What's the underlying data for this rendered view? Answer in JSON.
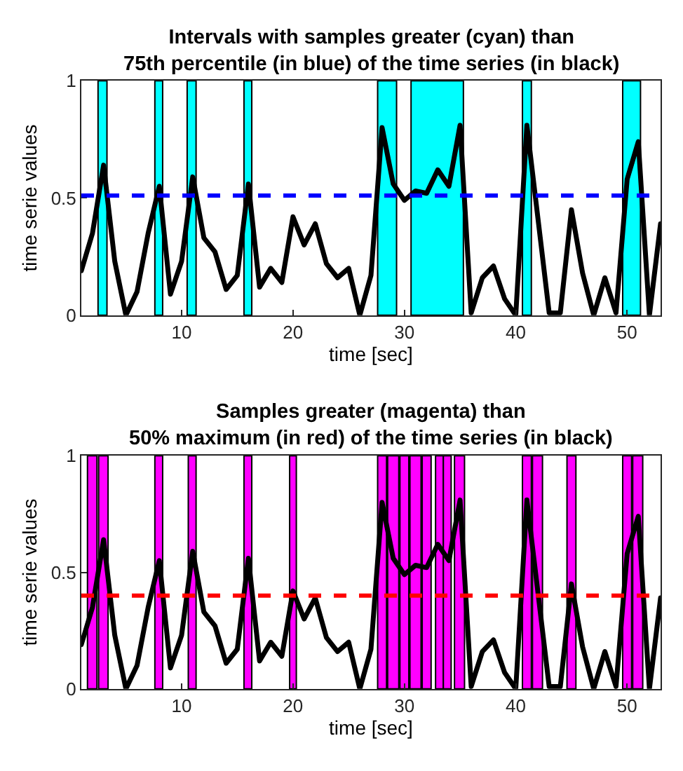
{
  "chart_data": [
    {
      "type": "line",
      "title": "Intervals with samples greater (cyan) than\n75th percentile (in blue) of the time series (in black)",
      "xlabel": "time [sec]",
      "ylabel": "time serie values",
      "x": [
        1,
        2,
        3,
        4,
        5,
        6,
        7,
        8,
        9,
        10,
        11,
        12,
        13,
        14,
        15,
        16,
        17,
        18,
        19,
        20,
        21,
        22,
        23,
        24,
        25,
        26,
        27,
        28,
        29,
        30,
        31,
        32,
        33,
        34,
        35,
        36,
        37,
        38,
        39,
        40,
        41,
        42,
        43,
        44,
        45,
        46,
        47,
        48,
        49,
        50,
        51,
        52,
        53
      ],
      "series": [
        {
          "color": "#000000",
          "values": [
            0.19,
            0.35,
            0.64,
            0.23,
            0.0,
            0.1,
            0.35,
            0.55,
            0.09,
            0.23,
            0.59,
            0.33,
            0.27,
            0.11,
            0.17,
            0.56,
            0.12,
            0.2,
            0.14,
            0.42,
            0.3,
            0.39,
            0.22,
            0.16,
            0.2,
            0.0,
            0.17,
            0.8,
            0.56,
            0.49,
            0.53,
            0.52,
            0.62,
            0.55,
            0.81,
            0.01,
            0.16,
            0.21,
            0.07,
            0.0,
            0.81,
            0.41,
            0.01,
            0.01,
            0.45,
            0.18,
            0.0,
            0.16,
            0.01,
            0.58,
            0.74,
            0.0,
            0.39
          ]
        }
      ],
      "xlim": [
        1,
        53
      ],
      "xticks": [
        10,
        20,
        30,
        40,
        50
      ],
      "ylim": [
        0,
        1
      ],
      "yticks": [
        0,
        0.5,
        1
      ],
      "grid": false,
      "line_style": "solid",
      "marker": "none",
      "ref_lines": [
        {
          "axis": "y",
          "value": 0.51,
          "color": "#0000ff",
          "line_style": "dashed"
        }
      ],
      "bands": [
        {
          "axis": "x",
          "from": 2.5,
          "to": 3.3,
          "color": "#00ffff"
        },
        {
          "axis": "x",
          "from": 7.6,
          "to": 8.3,
          "color": "#00ffff"
        },
        {
          "axis": "x",
          "from": 10.5,
          "to": 11.3,
          "color": "#00ffff"
        },
        {
          "axis": "x",
          "from": 15.6,
          "to": 16.3,
          "color": "#00ffff"
        },
        {
          "axis": "x",
          "from": 27.6,
          "to": 29.3,
          "color": "#00ffff"
        },
        {
          "axis": "x",
          "from": 30.6,
          "to": 35.3,
          "color": "#00ffff"
        },
        {
          "axis": "x",
          "from": 40.6,
          "to": 41.4,
          "color": "#00ffff"
        },
        {
          "axis": "x",
          "from": 49.6,
          "to": 51.2,
          "color": "#00ffff"
        }
      ]
    },
    {
      "type": "line",
      "title": "Samples greater (magenta) than\n50% maximum (in red) of the time series (in black)",
      "xlabel": "time [sec]",
      "ylabel": "time serie values",
      "x": [
        1,
        2,
        3,
        4,
        5,
        6,
        7,
        8,
        9,
        10,
        11,
        12,
        13,
        14,
        15,
        16,
        17,
        18,
        19,
        20,
        21,
        22,
        23,
        24,
        25,
        26,
        27,
        28,
        29,
        30,
        31,
        32,
        33,
        34,
        35,
        36,
        37,
        38,
        39,
        40,
        41,
        42,
        43,
        44,
        45,
        46,
        47,
        48,
        49,
        50,
        51,
        52,
        53
      ],
      "series": [
        {
          "color": "#000000",
          "values": [
            0.19,
            0.35,
            0.64,
            0.23,
            0.0,
            0.1,
            0.35,
            0.55,
            0.09,
            0.23,
            0.59,
            0.33,
            0.27,
            0.11,
            0.17,
            0.56,
            0.12,
            0.2,
            0.14,
            0.42,
            0.3,
            0.39,
            0.22,
            0.16,
            0.2,
            0.0,
            0.17,
            0.8,
            0.56,
            0.49,
            0.53,
            0.52,
            0.62,
            0.55,
            0.81,
            0.01,
            0.16,
            0.21,
            0.07,
            0.0,
            0.81,
            0.41,
            0.01,
            0.01,
            0.45,
            0.18,
            0.0,
            0.16,
            0.01,
            0.58,
            0.74,
            0.0,
            0.39
          ]
        }
      ],
      "xlim": [
        1,
        53
      ],
      "xticks": [
        10,
        20,
        30,
        40,
        50
      ],
      "ylim": [
        0,
        1
      ],
      "yticks": [
        0,
        0.5,
        1
      ],
      "grid": false,
      "line_style": "solid",
      "marker": "none",
      "ref_lines": [
        {
          "axis": "y",
          "value": 0.4,
          "color": "#ff0000",
          "line_style": "dashed"
        }
      ],
      "bands": [
        {
          "axis": "x",
          "from": 1.55,
          "to": 2.4,
          "color": "#ff00ff"
        },
        {
          "axis": "x",
          "from": 2.55,
          "to": 3.4,
          "color": "#ff00ff"
        },
        {
          "axis": "x",
          "from": 7.6,
          "to": 8.3,
          "color": "#ff00ff"
        },
        {
          "axis": "x",
          "from": 10.6,
          "to": 11.3,
          "color": "#ff00ff"
        },
        {
          "axis": "x",
          "from": 15.6,
          "to": 16.3,
          "color": "#ff00ff"
        },
        {
          "axis": "x",
          "from": 19.7,
          "to": 20.3,
          "color": "#ff00ff"
        },
        {
          "axis": "x",
          "from": 27.6,
          "to": 28.4,
          "color": "#ff00ff"
        },
        {
          "axis": "x",
          "from": 28.5,
          "to": 29.5,
          "color": "#ff00ff"
        },
        {
          "axis": "x",
          "from": 29.6,
          "to": 30.4,
          "color": "#ff00ff"
        },
        {
          "axis": "x",
          "from": 30.5,
          "to": 31.5,
          "color": "#ff00ff"
        },
        {
          "axis": "x",
          "from": 31.6,
          "to": 32.4,
          "color": "#ff00ff"
        },
        {
          "axis": "x",
          "from": 32.8,
          "to": 33.5,
          "color": "#ff00ff"
        },
        {
          "axis": "x",
          "from": 33.5,
          "to": 34.2,
          "color": "#ff00ff"
        },
        {
          "axis": "x",
          "from": 34.5,
          "to": 35.4,
          "color": "#ff00ff"
        },
        {
          "axis": "x",
          "from": 40.6,
          "to": 41.4,
          "color": "#ff00ff"
        },
        {
          "axis": "x",
          "from": 41.5,
          "to": 42.4,
          "color": "#ff00ff"
        },
        {
          "axis": "x",
          "from": 44.6,
          "to": 45.4,
          "color": "#ff00ff"
        },
        {
          "axis": "x",
          "from": 49.6,
          "to": 50.4,
          "color": "#ff00ff"
        },
        {
          "axis": "x",
          "from": 50.5,
          "to": 51.4,
          "color": "#ff00ff"
        }
      ]
    }
  ]
}
